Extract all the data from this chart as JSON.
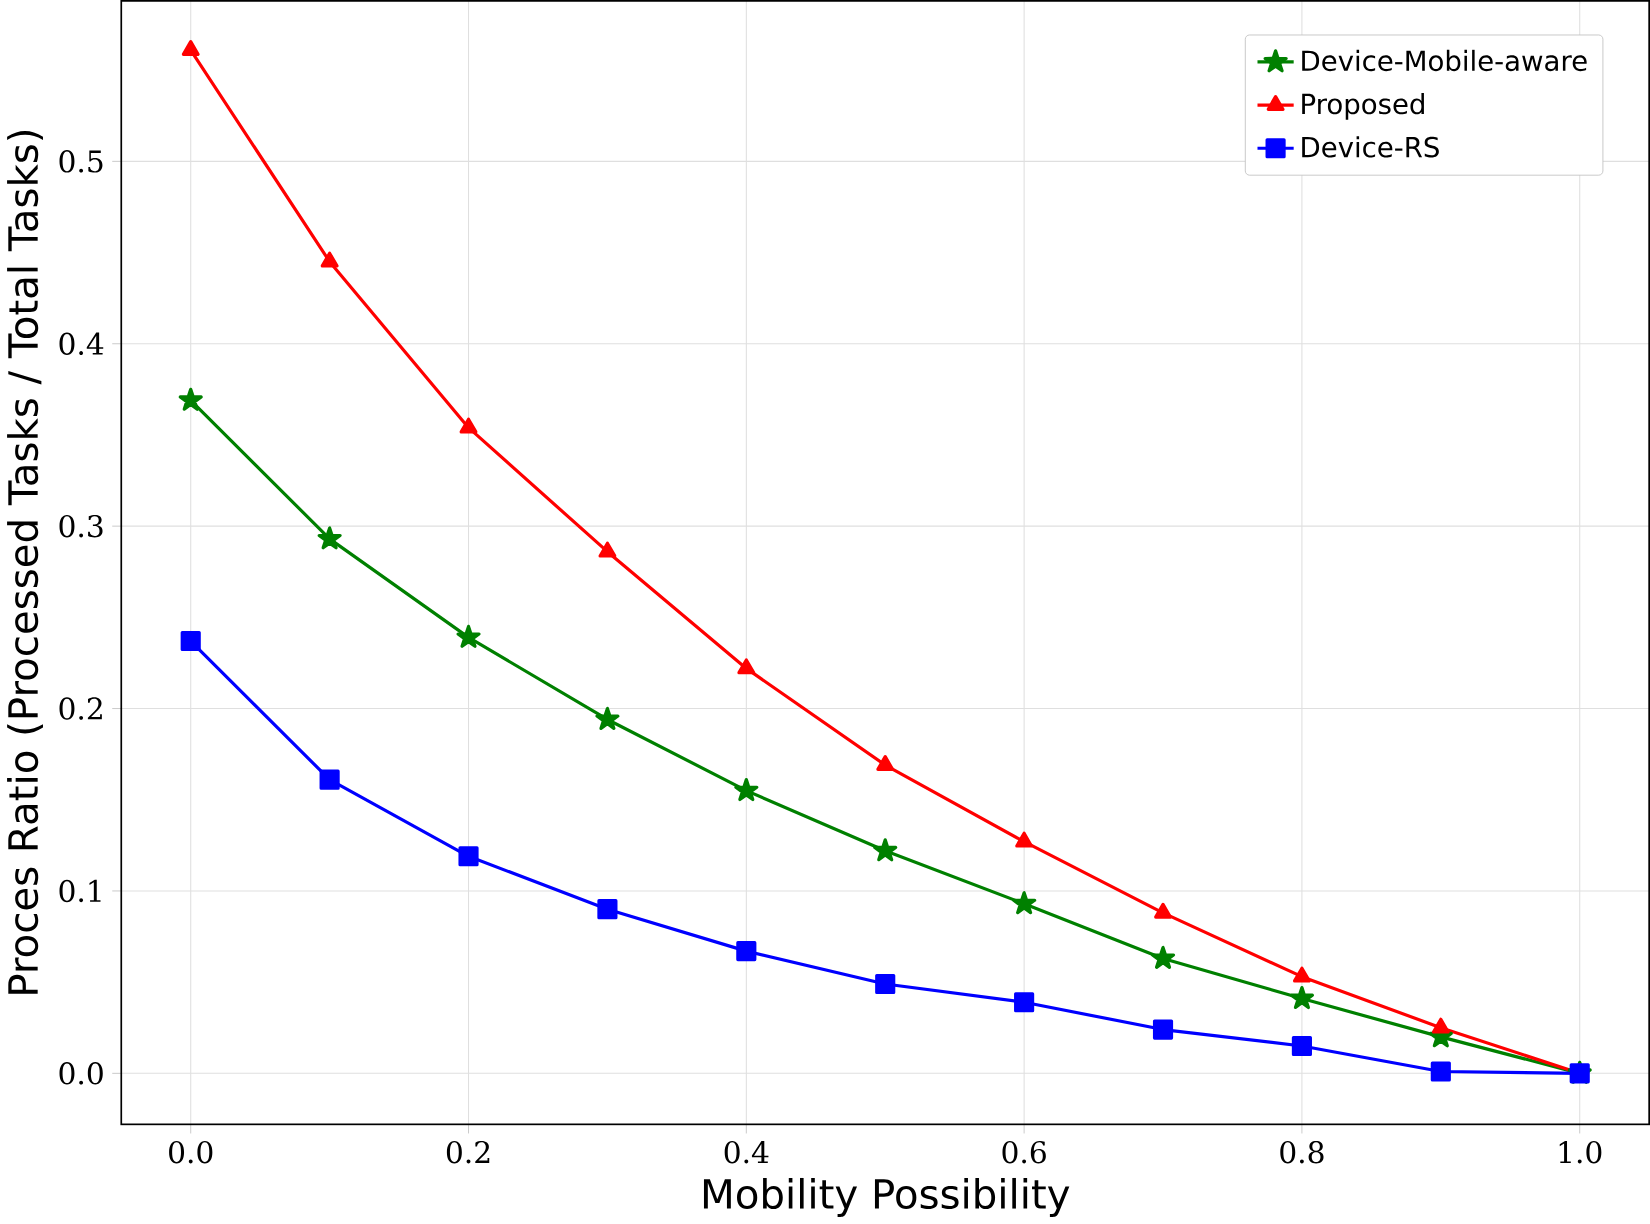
{
  "chart_data": {
    "type": "line",
    "xlabel": "Mobility Possibility",
    "ylabel": "Proces Ratio (Processed Tasks / Total Tasks)",
    "x": [
      0.0,
      0.1,
      0.2,
      0.3,
      0.4,
      0.5,
      0.6,
      0.7,
      0.8,
      0.9,
      1.0
    ],
    "series": [
      {
        "name": "Device-Mobile-aware",
        "color": "#008000",
        "marker": "star",
        "values": [
          0.369,
          0.293,
          0.239,
          0.194,
          0.155,
          0.122,
          0.093,
          0.063,
          0.041,
          0.02,
          0.0
        ]
      },
      {
        "name": "Proposed",
        "color": "#ff0000",
        "marker": "triangle",
        "values": [
          0.561,
          0.445,
          0.354,
          0.286,
          0.222,
          0.169,
          0.127,
          0.088,
          0.053,
          0.025,
          0.0
        ]
      },
      {
        "name": "Device-RS",
        "color": "#0000ff",
        "marker": "square",
        "values": [
          0.237,
          0.161,
          0.119,
          0.09,
          0.067,
          0.049,
          0.039,
          0.024,
          0.015,
          0.001,
          0.0
        ]
      }
    ],
    "xlim": [
      -0.05,
      1.05
    ],
    "ylim": [
      -0.028,
      0.588
    ],
    "xticks": [
      {
        "value": 0,
        "label": "0.0"
      },
      {
        "value": 0.2,
        "label": "0.2"
      },
      {
        "value": 0.4,
        "label": "0.4"
      },
      {
        "value": 0.6,
        "label": "0.6"
      },
      {
        "value": 0.8,
        "label": "0.8"
      },
      {
        "value": 1,
        "label": "1.0"
      }
    ],
    "yticks": [
      {
        "value": 0,
        "label": "0.0"
      },
      {
        "value": 0.1,
        "label": "0.1"
      },
      {
        "value": 0.2,
        "label": "0.2"
      },
      {
        "value": 0.3,
        "label": "0.3"
      },
      {
        "value": 0.4,
        "label": "0.4"
      },
      {
        "value": 0.5,
        "label": "0.5"
      }
    ],
    "grid": true,
    "legend": "top right",
    "line_style": "solid"
  }
}
